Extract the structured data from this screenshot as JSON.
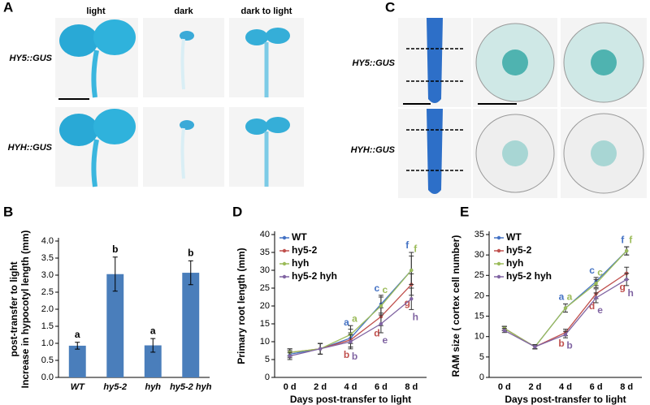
{
  "panels": [
    "A",
    "B",
    "C",
    "D",
    "E"
  ],
  "panel_a": {
    "columns": [
      "light",
      "dark",
      "dark to light"
    ],
    "rows": [
      "HY5::GUS",
      "HYH::GUS"
    ]
  },
  "panel_c": {
    "rows": [
      "HY5::GUS",
      "HYH::GUS"
    ]
  },
  "chart_data": [
    {
      "type": "bar",
      "categories": [
        "WT",
        "hy5-2",
        "hyh",
        "hy5-2 hyh"
      ],
      "values": [
        0.93,
        3.03,
        0.94,
        3.07
      ],
      "errors": [
        0.1,
        0.5,
        0.2,
        0.35
      ],
      "letters": [
        "a",
        "b",
        "a",
        "b"
      ],
      "color": "#4a7ebb",
      "ylim": [
        0,
        4
      ],
      "yticks": [
        {
          "value": 0,
          "label": "0.0"
        },
        {
          "value": 0.5,
          "label": "0.5"
        },
        {
          "value": 1,
          "label": "1.0"
        },
        {
          "value": 1.5,
          "label": "1.5"
        },
        {
          "value": 2,
          "label": "2.0"
        },
        {
          "value": 2.5,
          "label": "2.5"
        },
        {
          "value": 3,
          "label": "3.0"
        },
        {
          "value": 3.5,
          "label": "3.5"
        },
        {
          "value": 4,
          "label": "4.0"
        }
      ],
      "ylabel": [
        "Increase in hypocotyl length (mm)",
        "post-transfer to light"
      ]
    },
    {
      "type": "line",
      "categories": [
        "0 d",
        "2 d",
        "4 d",
        "6 d",
        "8 d"
      ],
      "series": [
        {
          "name": "WT",
          "color": "#4472c4",
          "values": [
            6.5,
            8,
            11,
            20.5,
            30
          ],
          "errors": [
            1,
            1.5,
            2.5,
            2.5,
            5
          ],
          "letters": [
            null,
            null,
            "a",
            "c",
            "f"
          ]
        },
        {
          "name": "hy5-2",
          "color": "#c0504d",
          "values": [
            7,
            8,
            10.5,
            17,
            26
          ],
          "errors": [
            1,
            1.5,
            2,
            2.5,
            3
          ],
          "letters": [
            null,
            null,
            "b",
            "d",
            "g"
          ]
        },
        {
          "name": "hyh",
          "color": "#9bbb59",
          "values": [
            7,
            8,
            12,
            20,
            30
          ],
          "errors": [
            1,
            1.5,
            2.5,
            2.5,
            4
          ],
          "letters": [
            null,
            null,
            "a",
            "c",
            "f"
          ]
        },
        {
          "name": "hy5-2 hyh",
          "color": "#8064a2",
          "values": [
            6,
            8,
            10,
            15,
            22
          ],
          "errors": [
            1,
            1.5,
            2,
            2.5,
            3
          ],
          "letters": [
            null,
            null,
            "b",
            "e",
            "h"
          ]
        }
      ],
      "ylim": [
        0,
        40
      ],
      "yticks": [
        0,
        5,
        10,
        15,
        20,
        25,
        30,
        35,
        40
      ],
      "ylabel": [
        "Primary root length (mm)"
      ],
      "xlabel": "Days post-transfer to light",
      "legend": "upper left"
    },
    {
      "type": "line",
      "categories": [
        "0 d",
        "2 d",
        "4 d",
        "6 d",
        "8 d"
      ],
      "series": [
        {
          "name": "WT",
          "color": "#4472c4",
          "values": [
            12,
            7.5,
            17,
            23.5,
            31
          ],
          "errors": [
            0.5,
            0.5,
            1,
            1,
            1
          ],
          "letters": [
            null,
            null,
            "a",
            "c",
            "f"
          ]
        },
        {
          "name": "hy5-2",
          "color": "#c0504d",
          "values": [
            12,
            7.5,
            11,
            20.5,
            25.5
          ],
          "errors": [
            0.5,
            0.5,
            0.8,
            1.2,
            1.5
          ],
          "letters": [
            null,
            null,
            "b",
            "d",
            "g"
          ]
        },
        {
          "name": "hyh",
          "color": "#9bbb59",
          "values": [
            12,
            7.5,
            17,
            23,
            31
          ],
          "errors": [
            0.5,
            0.5,
            1,
            1,
            1
          ],
          "letters": [
            null,
            null,
            "a",
            "c",
            "f"
          ]
        },
        {
          "name": "hy5-2 hyh",
          "color": "#8064a2",
          "values": [
            11.5,
            7.5,
            10.5,
            19.5,
            24
          ],
          "errors": [
            0.5,
            0.5,
            0.8,
            1.2,
            1.5
          ],
          "letters": [
            null,
            null,
            "b",
            "e",
            "h"
          ]
        }
      ],
      "ylim": [
        0,
        35
      ],
      "yticks": [
        0,
        5,
        10,
        15,
        20,
        25,
        30,
        35
      ],
      "ylabel": [
        "RAM size ( cortex cell number)"
      ],
      "xlabel": "Days post-transfer to light",
      "legend": "upper left"
    }
  ]
}
